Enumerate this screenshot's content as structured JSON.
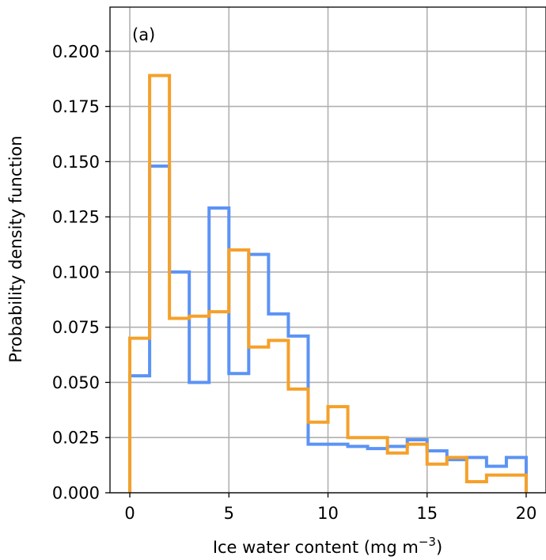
{
  "chart_data": {
    "type": "histogram-step",
    "panel_label": "(a)",
    "xlabel_main": "Ice water content (mg m",
    "xlabel_sup": "−3",
    "xlabel_close": ")",
    "ylabel": "Probability density function",
    "xlim": [
      -1,
      21
    ],
    "ylim": [
      0,
      0.22
    ],
    "xticks": [
      0,
      5,
      10,
      15,
      20
    ],
    "xtick_labels": [
      "0",
      "5",
      "10",
      "15",
      "20"
    ],
    "yticks": [
      0,
      0.025,
      0.05,
      0.075,
      0.1,
      0.125,
      0.15,
      0.175,
      0.2
    ],
    "ytick_labels": [
      "0.000",
      "0.025",
      "0.050",
      "0.075",
      "0.100",
      "0.125",
      "0.150",
      "0.175",
      "0.200"
    ],
    "grid": true,
    "bin_edges": [
      0,
      1,
      2,
      3,
      4,
      5,
      6,
      7,
      8,
      9,
      10,
      11,
      12,
      13,
      14,
      15,
      16,
      17,
      18,
      19,
      20
    ],
    "series": [
      {
        "color": "#5b93f5",
        "values": [
          0.053,
          0.148,
          0.1,
          0.05,
          0.129,
          0.054,
          0.108,
          0.081,
          0.071,
          0.022,
          0.022,
          0.021,
          0.02,
          0.021,
          0.024,
          0.019,
          0.015,
          0.016,
          0.012,
          0.016
        ]
      },
      {
        "color": "#f5a02a",
        "values": [
          0.07,
          0.189,
          0.079,
          0.08,
          0.082,
          0.11,
          0.066,
          0.069,
          0.047,
          0.032,
          0.039,
          0.025,
          0.025,
          0.018,
          0.022,
          0.013,
          0.016,
          0.005,
          0.008,
          0.008
        ]
      }
    ]
  }
}
